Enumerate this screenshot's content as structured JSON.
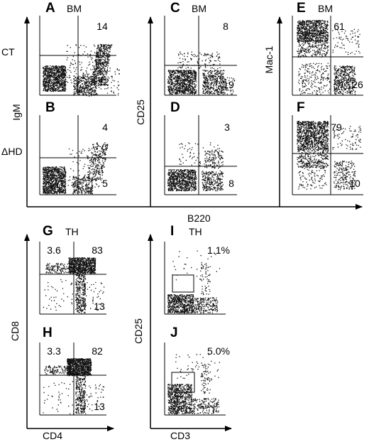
{
  "figure": {
    "top_group": {
      "x_axis_label": "B220",
      "row_labels": [
        "CT",
        "ΔHD"
      ],
      "y_axis_labels": [
        "IgM",
        "CD25",
        "Mac-1"
      ],
      "tissue": "BM"
    },
    "bottom_left_group": {
      "x_axis_label": "CD4",
      "y_axis_label": "CD8",
      "tissue": "TH"
    },
    "bottom_right_group": {
      "x_axis_label": "CD3",
      "y_axis_label": "CD25",
      "tissue": "TH"
    },
    "panels": [
      {
        "id": "A",
        "letter": "A",
        "tissue": "BM",
        "numbers": {
          "tr": "14",
          "br": "12"
        }
      },
      {
        "id": "B",
        "letter": "B",
        "tissue": "",
        "numbers": {
          "tr": "4",
          "br": "5"
        }
      },
      {
        "id": "C",
        "letter": "C",
        "tissue": "BM",
        "numbers": {
          "tr": "8",
          "br": "19"
        }
      },
      {
        "id": "D",
        "letter": "D",
        "tissue": "",
        "numbers": {
          "tr": "3",
          "br": "8"
        }
      },
      {
        "id": "E",
        "letter": "E",
        "tissue": "BM",
        "numbers": {
          "tl": "61",
          "br": "26"
        }
      },
      {
        "id": "F",
        "letter": "F",
        "tissue": "",
        "numbers": {
          "tl": "79",
          "br": "10"
        }
      },
      {
        "id": "G",
        "letter": "G",
        "tissue": "TH",
        "numbers": {
          "tl": "3.6",
          "tr": "83",
          "br": "13"
        }
      },
      {
        "id": "H",
        "letter": "H",
        "tissue": "",
        "numbers": {
          "tl": "3.3",
          "tr": "82",
          "br": "13"
        }
      },
      {
        "id": "I",
        "letter": "I",
        "tissue": "TH",
        "numbers": {
          "tr": "1.1%"
        }
      },
      {
        "id": "J",
        "letter": "J",
        "tissue": "",
        "numbers": {
          "tr": "5.0%"
        }
      }
    ]
  }
}
